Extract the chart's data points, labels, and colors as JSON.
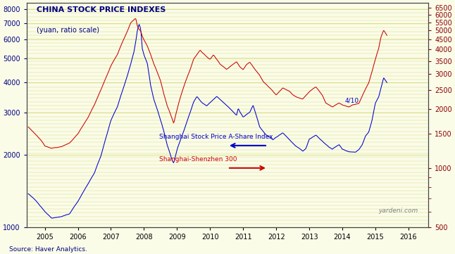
{
  "title": "CHINA STOCK PRICE INDEXES",
  "subtitle": "(yuan, ratio scale)",
  "source": "Source: Haver Analytics.",
  "watermark": "yardeni.com",
  "annotation": "4/10",
  "bg_color": "#FAFCE8",
  "left_yticks": [
    1000,
    2000,
    3000,
    4000,
    5000,
    6000,
    7000,
    8000
  ],
  "right_yticks": [
    500,
    1000,
    1500,
    2000,
    2500,
    3000,
    3500,
    4000,
    4500,
    5000,
    5500,
    6000,
    6500
  ],
  "ylim_left": [
    1000,
    8500
  ],
  "ylim_right": [
    500,
    6900
  ],
  "xlim": [
    2004.45,
    2016.6
  ],
  "xtick_years": [
    2005,
    2006,
    2007,
    2008,
    2009,
    2010,
    2011,
    2012,
    2013,
    2014,
    2015,
    2016
  ],
  "title_color": "#000080",
  "subtitle_color": "#000080",
  "left_axis_color": "#000080",
  "right_axis_color": "#8B0000",
  "source_color": "#000080",
  "watermark_color": "#808080",
  "blue_label": "Shanghai Stock Price A-Share Index",
  "red_label": "Shanghai-Shenzhen 300",
  "blue_color": "#0000CC",
  "red_color": "#CC0000",
  "grid_color": "#D4D470",
  "annotation_color": "#0000CC"
}
